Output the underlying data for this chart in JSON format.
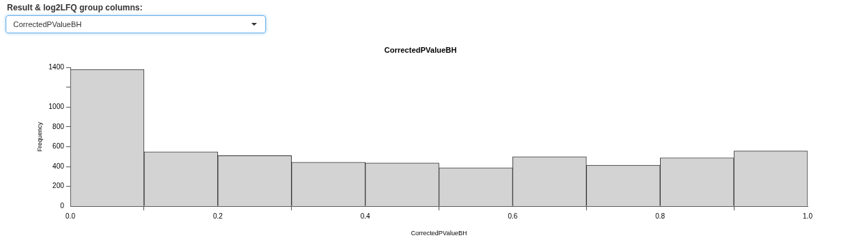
{
  "chart_data": {
    "type": "histogram",
    "title": "CorrectedPValueBH",
    "xlabel": "CorrectedPValueBH",
    "ylabel": "Frequency",
    "annotations": [
      "Result & log2LFQ group columns:",
      "CorrectedPValueBH"
    ],
    "bins": [
      0,
      0.1,
      0.2,
      0.3,
      0.4,
      0.5,
      0.6,
      0.7,
      0.8,
      0.9,
      1.0
    ],
    "values": [
      1380,
      548,
      510,
      443,
      437,
      387,
      500,
      414,
      488,
      557
    ],
    "color": "#d3d3d3",
    "xlim": [
      0,
      1
    ],
    "xticks": [
      {
        "value": 0,
        "label": "0.0"
      },
      0.2,
      0.4,
      0.6,
      0.8,
      {
        "value": 1,
        "label": "1.0"
      }
    ],
    "ylim": [
      0,
      1400
    ],
    "yticks": [
      0,
      200,
      400,
      600,
      800,
      1000,
      {
        "value": 1200,
        "label": null
      },
      1400
    ],
    "grid": false,
    "legend": false
  }
}
